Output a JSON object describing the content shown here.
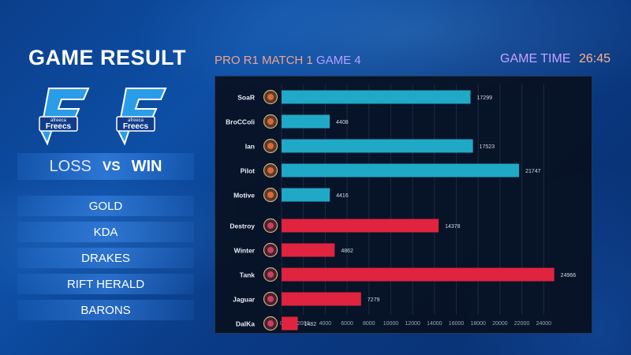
{
  "header": {
    "title": "GAME RESULT",
    "match_prefix": "PRO R1 MATCH 1",
    "match_game": "GAME 4",
    "time_label": "GAME TIME",
    "time_value": "26:45"
  },
  "result": {
    "left": "LOSS",
    "vs": "VS",
    "right": "WIN"
  },
  "logos": {
    "text_top": "afreeca",
    "text_main": "Freecs"
  },
  "menu": {
    "items": [
      {
        "label": "GOLD"
      },
      {
        "label": "KDA"
      },
      {
        "label": "DRAKES"
      },
      {
        "label": "RIFT HERALD"
      },
      {
        "label": "BARONS"
      }
    ]
  },
  "colors": {
    "team1": "#1fa9c7",
    "team2": "#e0233f"
  },
  "chart_data": {
    "type": "bar",
    "orientation": "horizontal",
    "title": "",
    "xlabel": "",
    "ylabel": "",
    "xlim": [
      0,
      26000
    ],
    "xticks": [
      0,
      2000,
      4000,
      6000,
      8000,
      10000,
      12000,
      14000,
      16000,
      18000,
      20000,
      22000,
      24000
    ],
    "grid": true,
    "categories": [
      "SoaR",
      "BroCColi",
      "Ian",
      "Pilot",
      "Motive",
      "Destroy",
      "Winter",
      "Tank",
      "Jaguar",
      "DalKa"
    ],
    "values": [
      17299,
      4408,
      17523,
      21747,
      4416,
      14378,
      4862,
      24966,
      7279,
      1482
    ],
    "team": [
      1,
      1,
      1,
      1,
      1,
      2,
      2,
      2,
      2,
      2
    ]
  }
}
